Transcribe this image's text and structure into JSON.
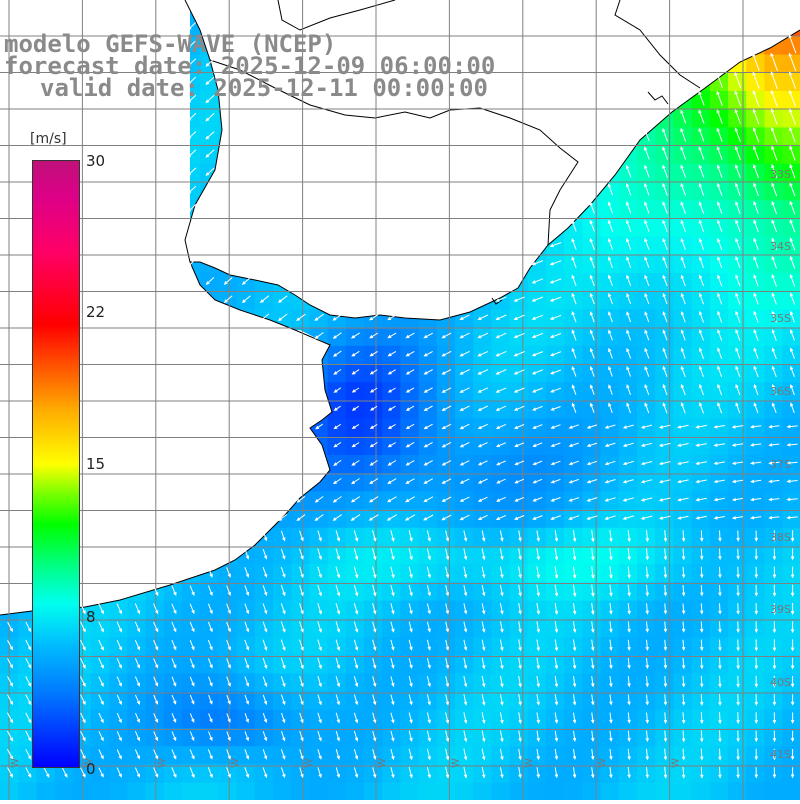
{
  "header": {
    "model_line": "modelo GEFS-WAVE (NCEP)",
    "forecast_line": "forecast date: 2025-12-09 06:00:00",
    "valid_line": "valid date: 2025-12-11 00:00:00"
  },
  "colorbar": {
    "unit": "[m/s]",
    "ticks": [
      "30",
      "22",
      "15",
      "8",
      "0"
    ],
    "tick_values": [
      30,
      22,
      15,
      8,
      0
    ],
    "min": 0,
    "max": 30
  },
  "map": {
    "lat_labels": [
      "33S",
      "34S",
      "35S",
      "36S",
      "37S",
      "38S",
      "39S",
      "40S",
      "41S"
    ],
    "lon_labels": [
      "W",
      "W",
      "W",
      "W",
      "W",
      "W",
      "W",
      "W",
      "W",
      "W"
    ],
    "colors": {
      "land": "#ffffff",
      "coast": "#000000",
      "grid": "#808080",
      "arrow": "#ffffff"
    }
  }
}
